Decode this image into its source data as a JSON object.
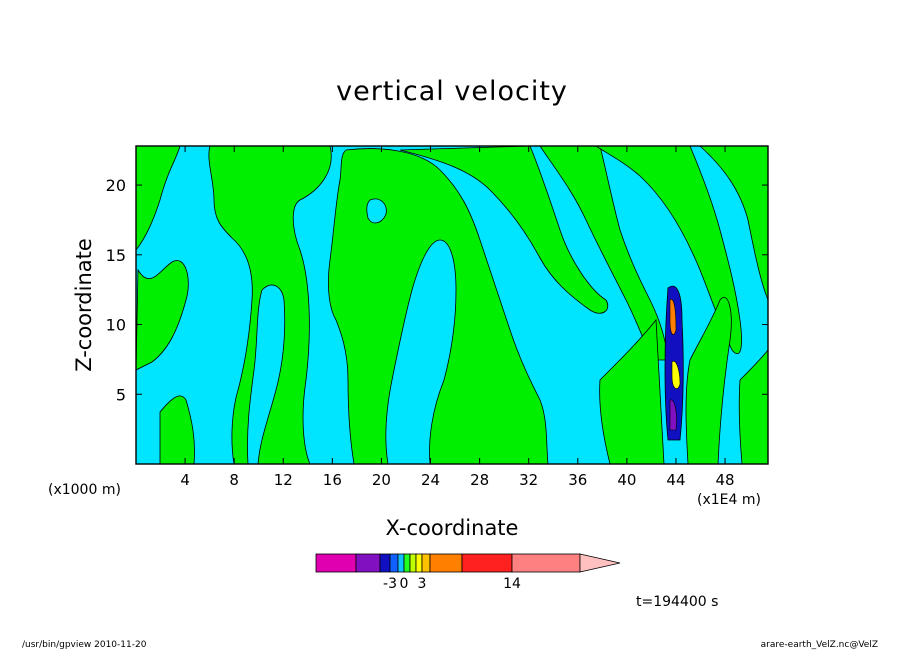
{
  "chart_data": {
    "type": "heatmap",
    "title": "vertical velocity",
    "xlabel": "X-coordinate",
    "ylabel": "Z-coordinate",
    "x_unit_left": "(x1000 m)",
    "x_unit_right": "(x1E4 m)",
    "xlim": [
      0,
      51.5
    ],
    "ylim": [
      0,
      22.8
    ],
    "x_ticks": [
      "4",
      "8",
      "12",
      "16",
      "20",
      "24",
      "28",
      "32",
      "36",
      "40",
      "44",
      "48"
    ],
    "y_ticks": [
      "5",
      "10",
      "15",
      "20"
    ],
    "colorbar": {
      "tick_labels": [
        "-3",
        "0",
        "3",
        "14"
      ],
      "colors": [
        "#e000b0",
        "#8010c0",
        "#1010c0",
        "#1060ff",
        "#10c0ff",
        "#20ff20",
        "#c0ff00",
        "#ffff00",
        "#ffc000",
        "#ff8000",
        "#ff2020",
        "#ff8080",
        "#ffc0c0"
      ]
    },
    "field_colors": {
      "negative_weak": "#00e5ff",
      "positive_weak": "#00ee00"
    },
    "updraft_core_x": 43.3,
    "time_label": "t=194400 s"
  },
  "footer": {
    "left": "/usr/bin/gpview   2010-11-20",
    "right": "arare-earth_VelZ.nc@VelZ"
  }
}
